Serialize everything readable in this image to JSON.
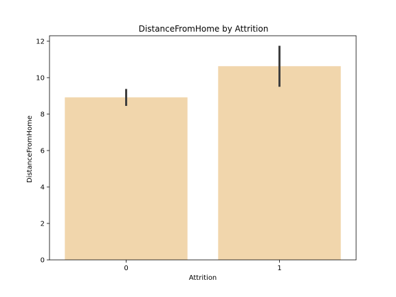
{
  "chart_data": {
    "type": "bar",
    "title": "DistanceFromHome by Attrition",
    "xlabel": "Attrition",
    "ylabel": "DistanceFromHome",
    "categories": [
      "0",
      "1"
    ],
    "values": [
      8.92,
      10.63
    ],
    "error_bars": [
      {
        "low": 8.45,
        "high": 9.38
      },
      {
        "low": 9.5,
        "high": 11.75
      }
    ],
    "ylim": [
      0,
      12.3
    ],
    "yticks": [
      0,
      2,
      4,
      6,
      8,
      10,
      12
    ],
    "grid": false,
    "bar_color": "#f1d6ac",
    "error_color": "#3f3f3f",
    "axis_color": "#000000"
  }
}
